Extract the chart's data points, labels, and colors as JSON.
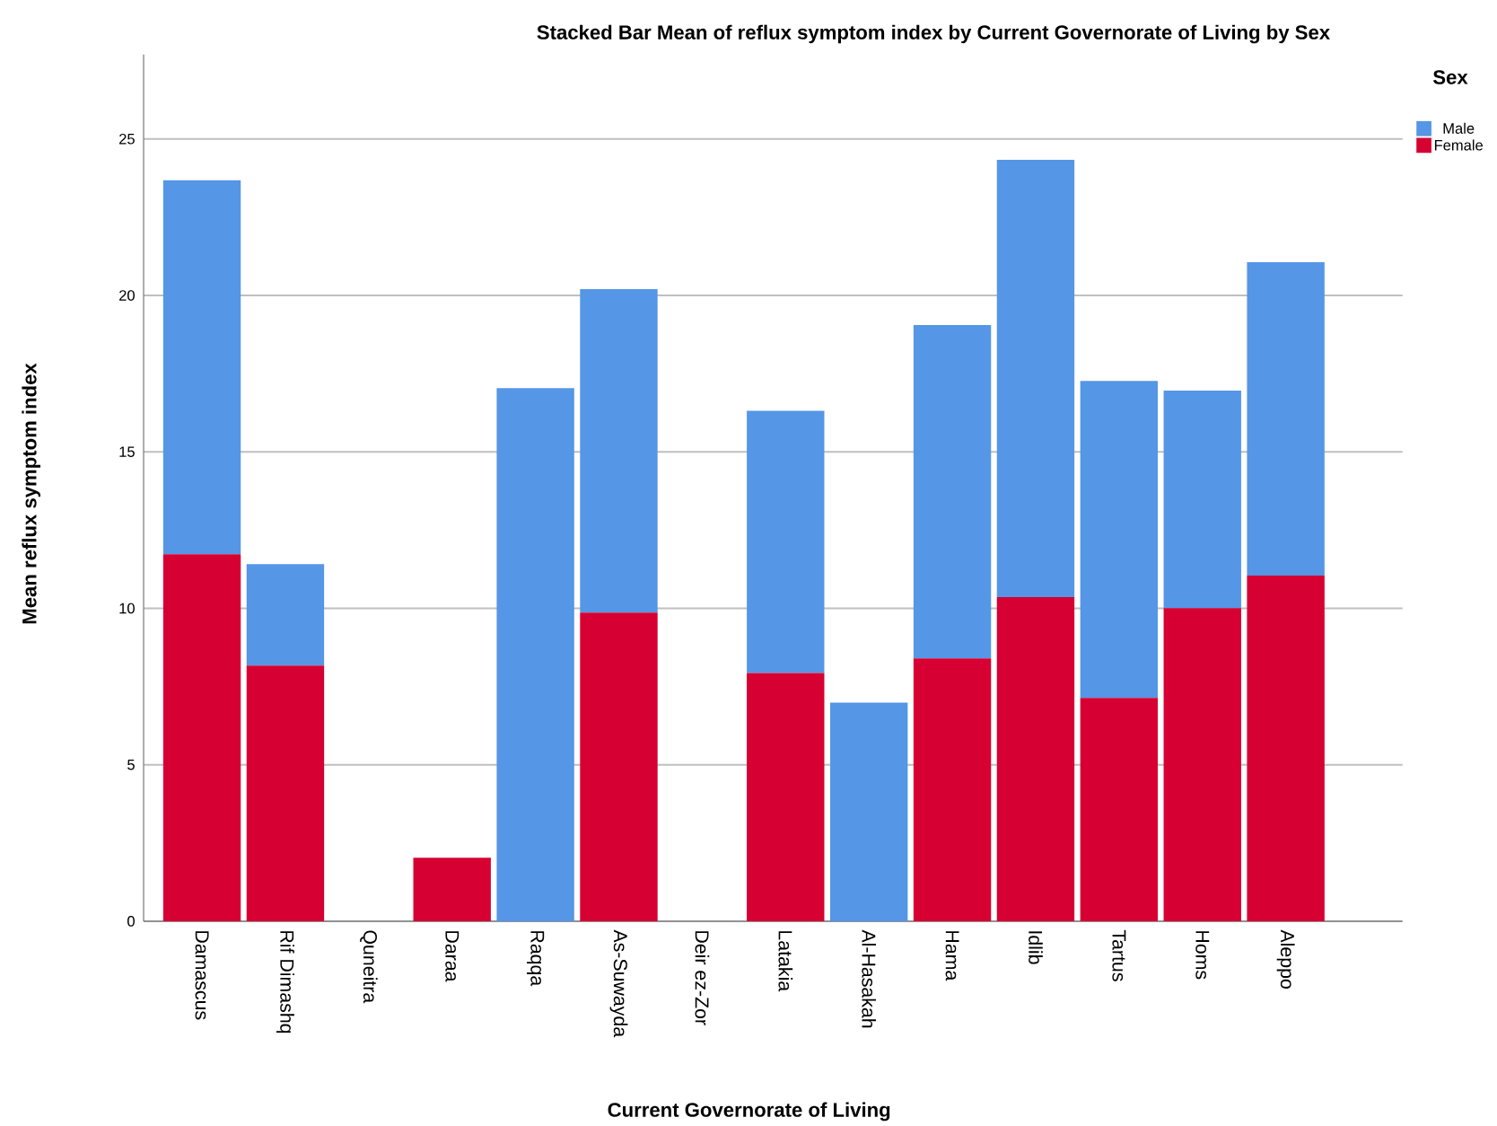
{
  "chart_data": {
    "type": "bar",
    "stacked": true,
    "title": "Stacked Bar Mean of reflux symptom index by Current Governorate of Living by Sex",
    "xlabel": "Current Governorate of Living",
    "ylabel": "Mean reflux symptom index",
    "legend_title": "Sex",
    "categories": [
      "Damascus",
      "Rif Dimashq",
      "Quneitra",
      "Daraa",
      "Raqqa",
      "As-Suwayda",
      "Deir ez-Zor",
      "Latakia",
      "Al-Hasakah",
      "Hama",
      "Idlib",
      "Tartus",
      "Homs",
      "Aleppo"
    ],
    "series": [
      {
        "name": "Female",
        "color": "#d60032",
        "values": [
          11.73,
          8.17,
          null,
          2.03,
          null,
          9.86,
          null,
          7.93,
          null,
          8.4,
          10.36,
          7.14,
          10.01,
          11.05
        ]
      },
      {
        "name": "Male",
        "color": "#5596e6",
        "values": [
          11.95,
          3.24,
          null,
          null,
          17.04,
          10.34,
          null,
          8.38,
          6.99,
          10.65,
          13.97,
          10.13,
          6.95,
          10.01
        ]
      }
    ],
    "ylim": [
      0,
      27.7
    ],
    "yticks": [
      0,
      5,
      10,
      15,
      20,
      25
    ],
    "grid": "y",
    "legend": "top right"
  }
}
